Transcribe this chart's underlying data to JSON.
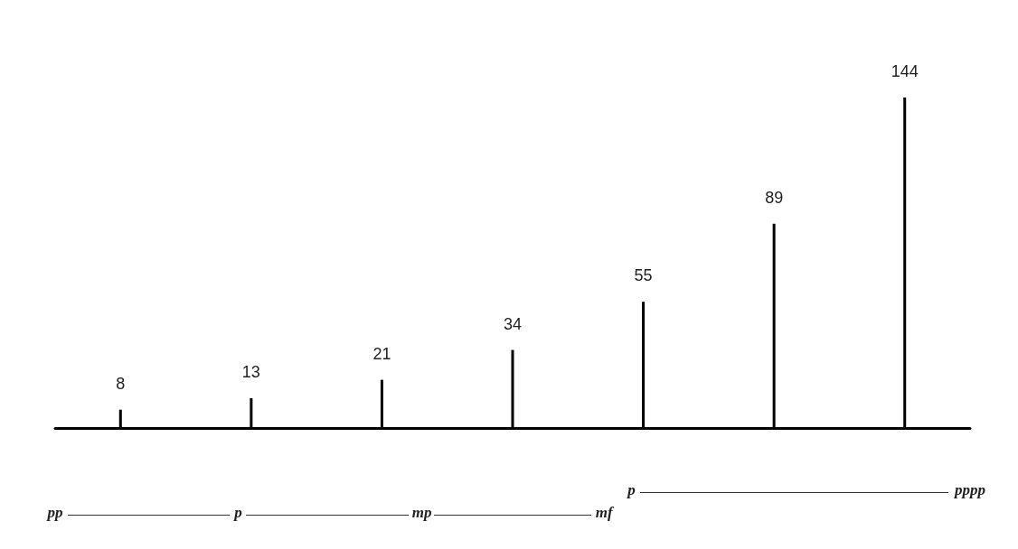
{
  "chart_data": {
    "type": "bar",
    "categories": [
      null,
      null,
      null,
      null,
      null,
      null,
      null
    ],
    "values": [
      8,
      13,
      21,
      34,
      55,
      89,
      144
    ],
    "color": "#000000",
    "data_labels": true,
    "tick_labels": false,
    "grid": false,
    "annotations": [
      "pp",
      "p",
      "mp",
      "mf",
      "p",
      "pppp"
    ]
  }
}
